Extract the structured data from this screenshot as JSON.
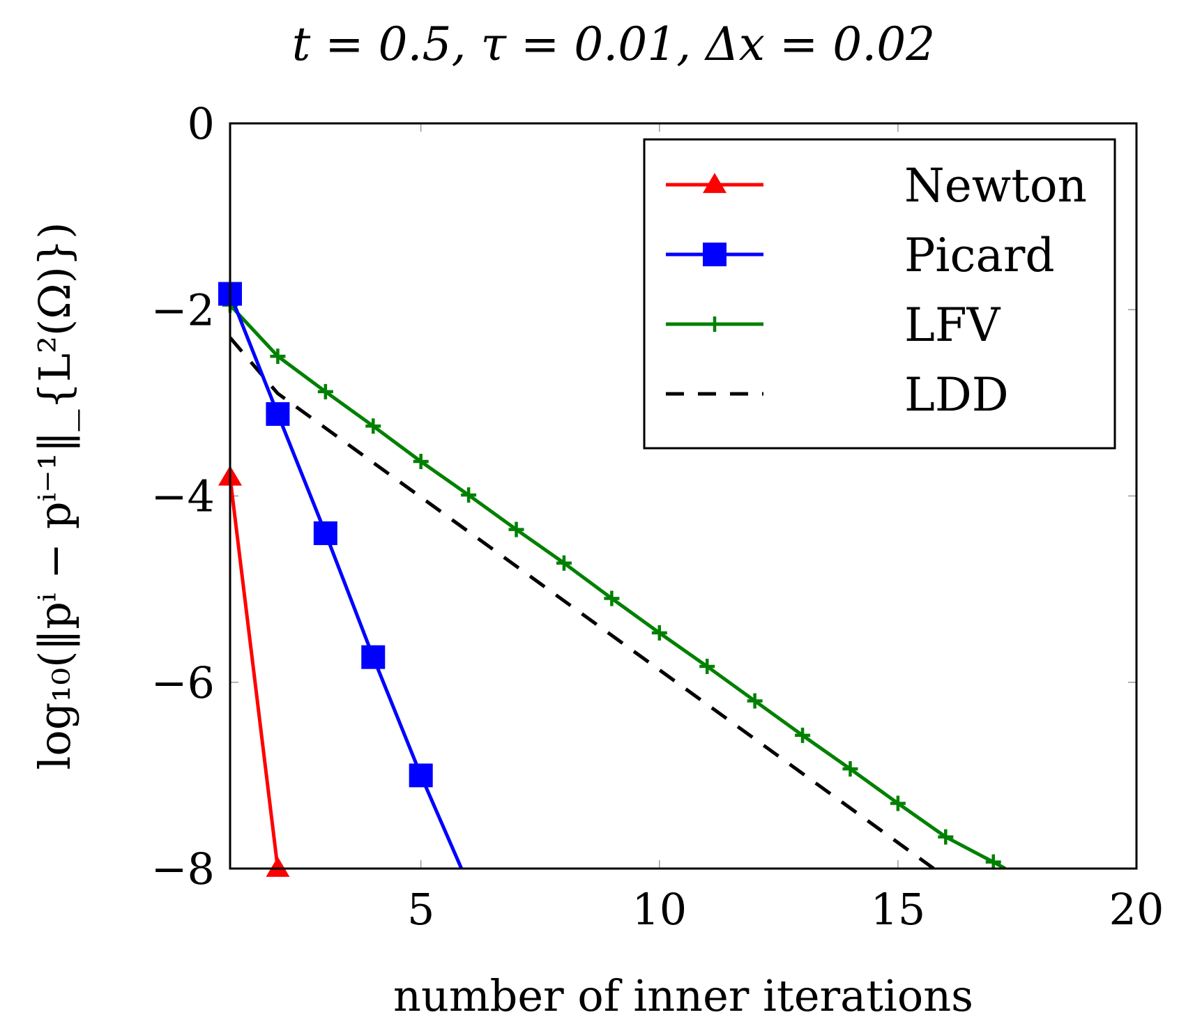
{
  "chart_data": {
    "type": "line",
    "title": "t = 0.5, τ = 0.01, Δx = 0.02",
    "xlabel": "number of inner iterations",
    "ylabel": "log₁₀(‖pⁱ − pⁱ⁻¹‖_{L²(Ω)})",
    "xlim": [
      1,
      20
    ],
    "ylim": [
      -8,
      0
    ],
    "xticks": [
      5,
      10,
      15,
      20
    ],
    "xtick_labels": [
      "5",
      "10",
      "15",
      "20"
    ],
    "yticks": [
      0,
      -2,
      -4,
      -6,
      -8
    ],
    "ytick_labels": [
      "0",
      "−2",
      "−4",
      "−6",
      "−8"
    ],
    "grid": "ticks only",
    "legend_position": "top-right",
    "series": [
      {
        "name": "Newton",
        "color": "#ff0000",
        "marker": "triangle",
        "dash": "solid",
        "x": [
          1,
          2
        ],
        "y": [
          -3.8,
          -8.0
        ]
      },
      {
        "name": "Picard",
        "color": "#0000ff",
        "marker": "square",
        "dash": "solid",
        "x": [
          1,
          2,
          3,
          4,
          5,
          5.85
        ],
        "y": [
          -1.83,
          -3.12,
          -4.4,
          -5.73,
          -7.0,
          -8.0
        ]
      },
      {
        "name": "LFV",
        "color": "#008000",
        "marker": "plus",
        "dash": "solid",
        "x": [
          1,
          2,
          3,
          4,
          5,
          6,
          7,
          8,
          9,
          10,
          11,
          12,
          13,
          14,
          15,
          16,
          17,
          17.25
        ],
        "y": [
          -1.95,
          -2.5,
          -2.88,
          -3.25,
          -3.63,
          -3.99,
          -4.36,
          -4.72,
          -5.1,
          -5.47,
          -5.83,
          -6.2,
          -6.57,
          -6.93,
          -7.3,
          -7.66,
          -7.93,
          -8.0
        ]
      },
      {
        "name": "LDD",
        "color": "#000000",
        "marker": "none",
        "dash": "dashed",
        "x": [
          1,
          2,
          15.75
        ],
        "y": [
          -2.3,
          -2.9,
          -8.0
        ]
      }
    ]
  }
}
